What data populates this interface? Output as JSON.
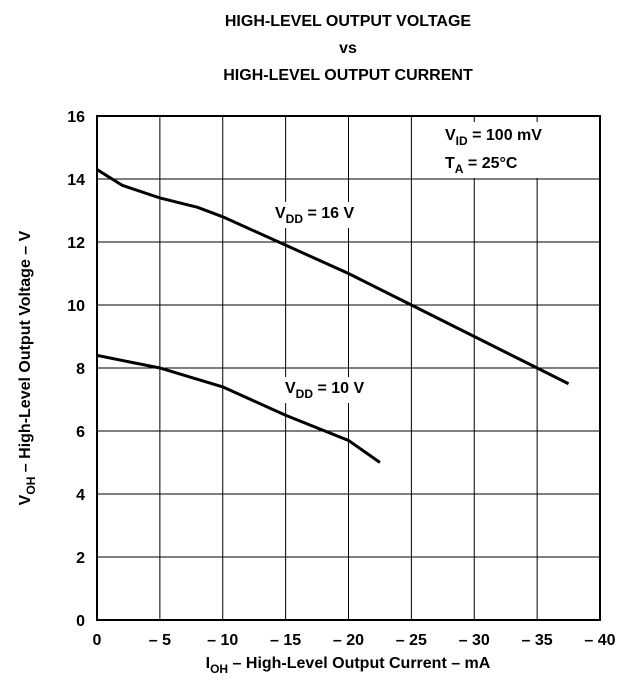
{
  "chart_data": {
    "type": "line",
    "title": [
      "HIGH-LEVEL OUTPUT VOLTAGE",
      "vs",
      "HIGH-LEVEL OUTPUT CURRENT"
    ],
    "xlabel": [
      "I",
      "OH",
      " – High-Level Output Current – mA"
    ],
    "ylabel": [
      "V",
      "OH",
      " – High-Level Output Voltage – V"
    ],
    "xlim": [
      0,
      -40
    ],
    "ylim": [
      0,
      16
    ],
    "xticks": [
      0,
      {
        "value": -5,
        "label": "– 5"
      },
      {
        "value": -10,
        "label": "– 10"
      },
      {
        "value": -15,
        "label": "– 15"
      },
      {
        "value": -20,
        "label": "– 20"
      },
      {
        "value": -25,
        "label": "– 25"
      },
      {
        "value": -30,
        "label": "– 30"
      },
      {
        "value": -35,
        "label": "– 35"
      },
      {
        "value": -40,
        "label": "– 40"
      }
    ],
    "yticks": [
      0,
      2,
      4,
      6,
      8,
      10,
      12,
      14,
      16
    ],
    "grid": true,
    "annotations": [
      [
        "V",
        "ID",
        " = 100 mV"
      ],
      [
        "T",
        "A",
        " = 25°C"
      ]
    ],
    "series": [
      {
        "name": [
          "V",
          "DD",
          " = 16 V"
        ],
        "color": "#000000",
        "x": [
          0,
          -2,
          -5,
          -8,
          -10,
          -15,
          -20,
          -25,
          -30,
          -35,
          -37.5
        ],
        "values": [
          14.3,
          13.8,
          13.4,
          13.1,
          12.8,
          11.9,
          11.0,
          10.0,
          9.0,
          8.0,
          7.5
        ]
      },
      {
        "name": [
          "V",
          "DD",
          " = 10 V"
        ],
        "color": "#000000",
        "x": [
          0,
          -5,
          -10,
          -15,
          -20,
          -22.5
        ],
        "values": [
          8.4,
          8.0,
          7.4,
          6.5,
          5.7,
          5.0
        ]
      }
    ]
  }
}
